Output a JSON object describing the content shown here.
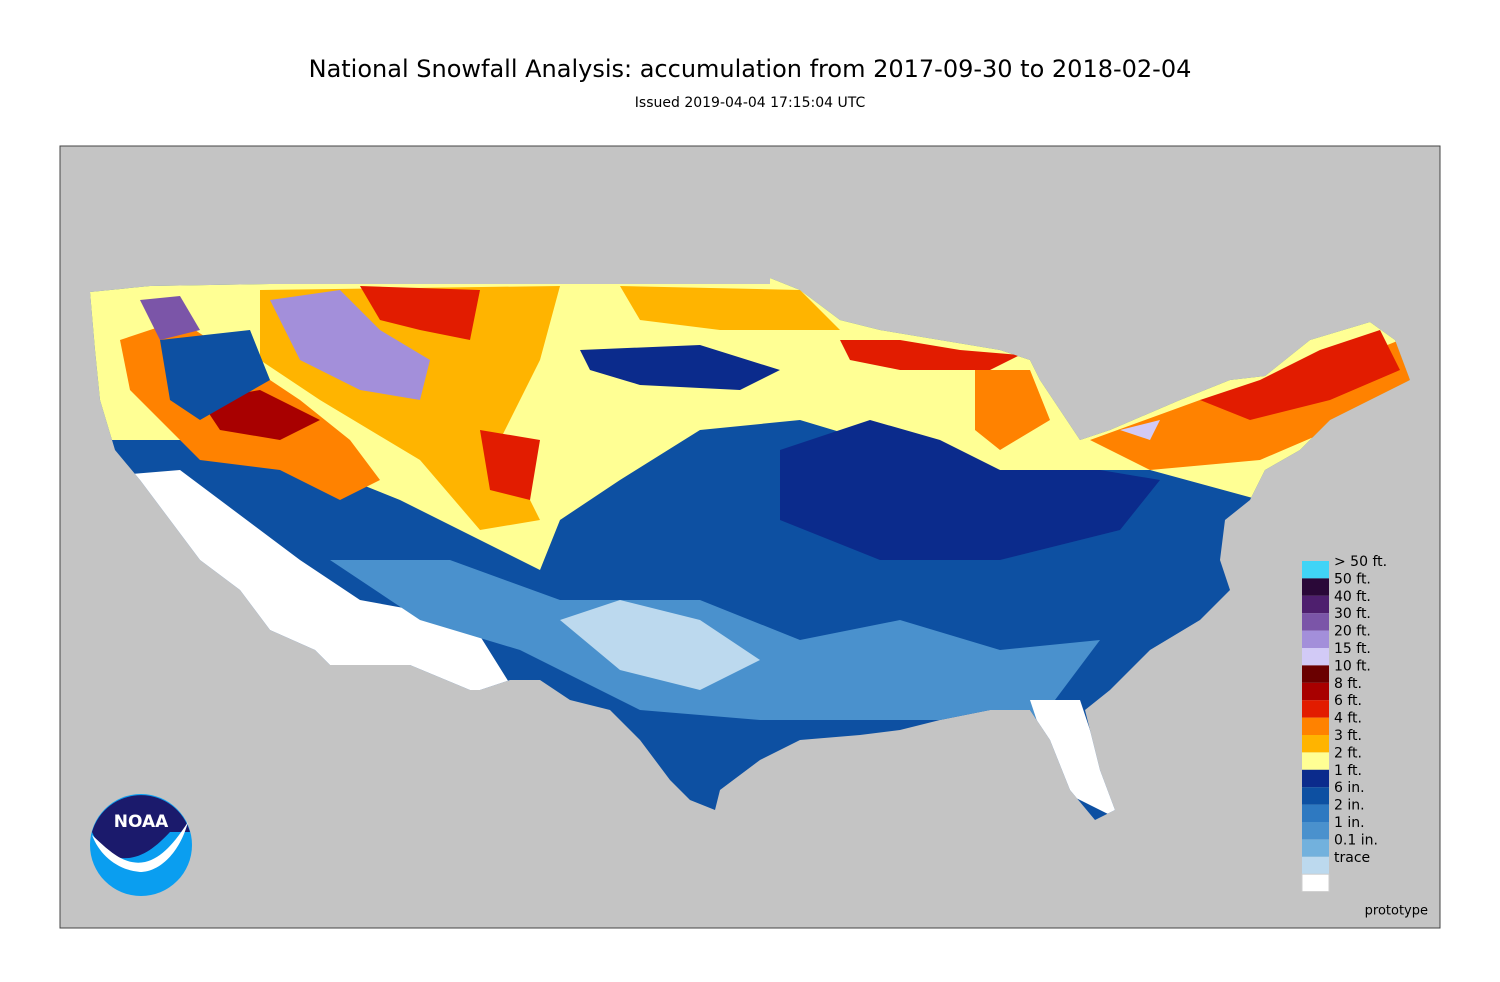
{
  "header": {
    "title": "National Snowfall Analysis: accumulation from 2017-09-30 to 2018-02-04",
    "subtitle": "Issued 2019-04-04 17:15:04 UTC"
  },
  "legend": [
    {
      "label": "> 50 ft.",
      "color": "#40d4f6"
    },
    {
      "label": "50 ft.",
      "color": "#2a0838"
    },
    {
      "label": "40 ft.",
      "color": "#4e1f6e"
    },
    {
      "label": "30 ft.",
      "color": "#7b55a8"
    },
    {
      "label": "20 ft.",
      "color": "#a38fda"
    },
    {
      "label": "15 ft.",
      "color": "#d2caf6"
    },
    {
      "label": "10 ft.",
      "color": "#6a0000"
    },
    {
      "label": "8 ft.",
      "color": "#a80000"
    },
    {
      "label": "6 ft.",
      "color": "#e21c00"
    },
    {
      "label": "4 ft.",
      "color": "#ff8200"
    },
    {
      "label": "3 ft.",
      "color": "#ffb400"
    },
    {
      "label": "2 ft.",
      "color": "#ffff94"
    },
    {
      "label": "1 ft.",
      "color": "#0b2b8c"
    },
    {
      "label": "6 in.",
      "color": "#0d50a2"
    },
    {
      "label": "2 in.",
      "color": "#2e79c1"
    },
    {
      "label": "1 in.",
      "color": "#4a91cd"
    },
    {
      "label": "0.1 in.",
      "color": "#72b1dd"
    },
    {
      "label": "trace",
      "color": "#bcd9ee"
    }
  ],
  "footer": {
    "note": "prototype"
  },
  "logo": {
    "text": "NOAA"
  }
}
